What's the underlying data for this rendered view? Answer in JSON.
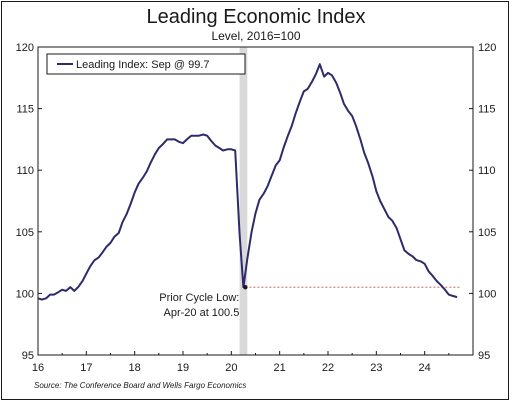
{
  "title": "Leading Economic Index",
  "subtitle": "Level, 2016=100",
  "source": "Source: The Conference Board and Wells Fargo Economics",
  "colors": {
    "line": "#2e2a6b",
    "recession": "#d9d9d9",
    "reference": "#e06060",
    "axis": "#1a1a1a"
  },
  "chart_data": {
    "type": "line",
    "title": "Leading Economic Index",
    "subtitle": "Level, 2016=100",
    "x_ticks": [
      "16",
      "17",
      "18",
      "19",
      "20",
      "21",
      "22",
      "23",
      "24"
    ],
    "y_ticks": [
      "95",
      "100",
      "105",
      "110",
      "115",
      "120"
    ],
    "ylim": [
      95,
      120
    ],
    "xlim": [
      2016.0,
      2025.0
    ],
    "grid": false,
    "legend_position": "top-left",
    "recession_shading": {
      "start": 2020.17,
      "end": 2020.33
    },
    "reference_line": {
      "y": 100.5,
      "from_x": 2020.29,
      "to_x": 2024.75,
      "style": "dotted"
    },
    "annotation": {
      "line1": "Prior Cycle Low:",
      "line2": "Apr-20 at 100.5",
      "x": 2020.29,
      "y": 100.5
    },
    "series": [
      {
        "name": "Leading Index: Sep @ 99.7",
        "x": [
          2016.0,
          2016.08,
          2016.17,
          2016.25,
          2016.33,
          2016.42,
          2016.5,
          2016.58,
          2016.67,
          2016.75,
          2016.83,
          2016.92,
          2017.0,
          2017.08,
          2017.17,
          2017.25,
          2017.33,
          2017.42,
          2017.5,
          2017.58,
          2017.67,
          2017.75,
          2017.83,
          2017.92,
          2018.0,
          2018.08,
          2018.17,
          2018.25,
          2018.33,
          2018.42,
          2018.5,
          2018.58,
          2018.67,
          2018.75,
          2018.83,
          2018.92,
          2019.0,
          2019.08,
          2019.17,
          2019.25,
          2019.33,
          2019.42,
          2019.5,
          2019.58,
          2019.67,
          2019.75,
          2019.83,
          2019.92,
          2020.0,
          2020.08,
          2020.17,
          2020.25,
          2020.33,
          2020.42,
          2020.5,
          2020.58,
          2020.67,
          2020.75,
          2020.83,
          2020.92,
          2021.0,
          2021.08,
          2021.17,
          2021.25,
          2021.33,
          2021.42,
          2021.5,
          2021.58,
          2021.67,
          2021.75,
          2021.83,
          2021.92,
          2022.0,
          2022.08,
          2022.17,
          2022.25,
          2022.33,
          2022.42,
          2022.5,
          2022.58,
          2022.67,
          2022.75,
          2022.83,
          2022.92,
          2023.0,
          2023.08,
          2023.17,
          2023.25,
          2023.33,
          2023.42,
          2023.5,
          2023.58,
          2023.67,
          2023.75,
          2023.83,
          2023.92,
          2024.0,
          2024.08,
          2024.17,
          2024.25,
          2024.33,
          2024.42,
          2024.5,
          2024.58,
          2024.67
        ],
        "values": [
          99.6,
          99.5,
          99.6,
          99.9,
          99.9,
          100.1,
          100.3,
          100.2,
          100.5,
          100.2,
          100.5,
          101.0,
          101.6,
          102.2,
          102.7,
          102.9,
          103.3,
          103.8,
          104.1,
          104.6,
          104.9,
          105.8,
          106.4,
          107.3,
          108.2,
          108.9,
          109.4,
          109.9,
          110.6,
          111.3,
          111.8,
          112.1,
          112.5,
          112.5,
          112.5,
          112.3,
          112.2,
          112.5,
          112.8,
          112.8,
          112.8,
          112.9,
          112.8,
          112.4,
          112.0,
          111.8,
          111.6,
          111.7,
          111.7,
          111.6,
          104.8,
          100.5,
          102.8,
          105.0,
          106.5,
          107.6,
          108.1,
          108.7,
          109.5,
          110.4,
          110.8,
          111.8,
          112.8,
          113.6,
          114.6,
          115.6,
          116.4,
          116.6,
          117.2,
          117.8,
          118.6,
          117.6,
          117.9,
          117.7,
          117.1,
          116.3,
          115.4,
          114.8,
          114.4,
          113.6,
          112.5,
          111.4,
          110.6,
          109.5,
          108.3,
          107.5,
          106.8,
          106.2,
          105.9,
          105.3,
          104.4,
          103.5,
          103.2,
          103.0,
          102.7,
          102.6,
          102.4,
          101.8,
          101.4,
          101.0,
          100.7,
          100.3,
          99.9,
          99.8,
          99.7
        ]
      }
    ]
  }
}
